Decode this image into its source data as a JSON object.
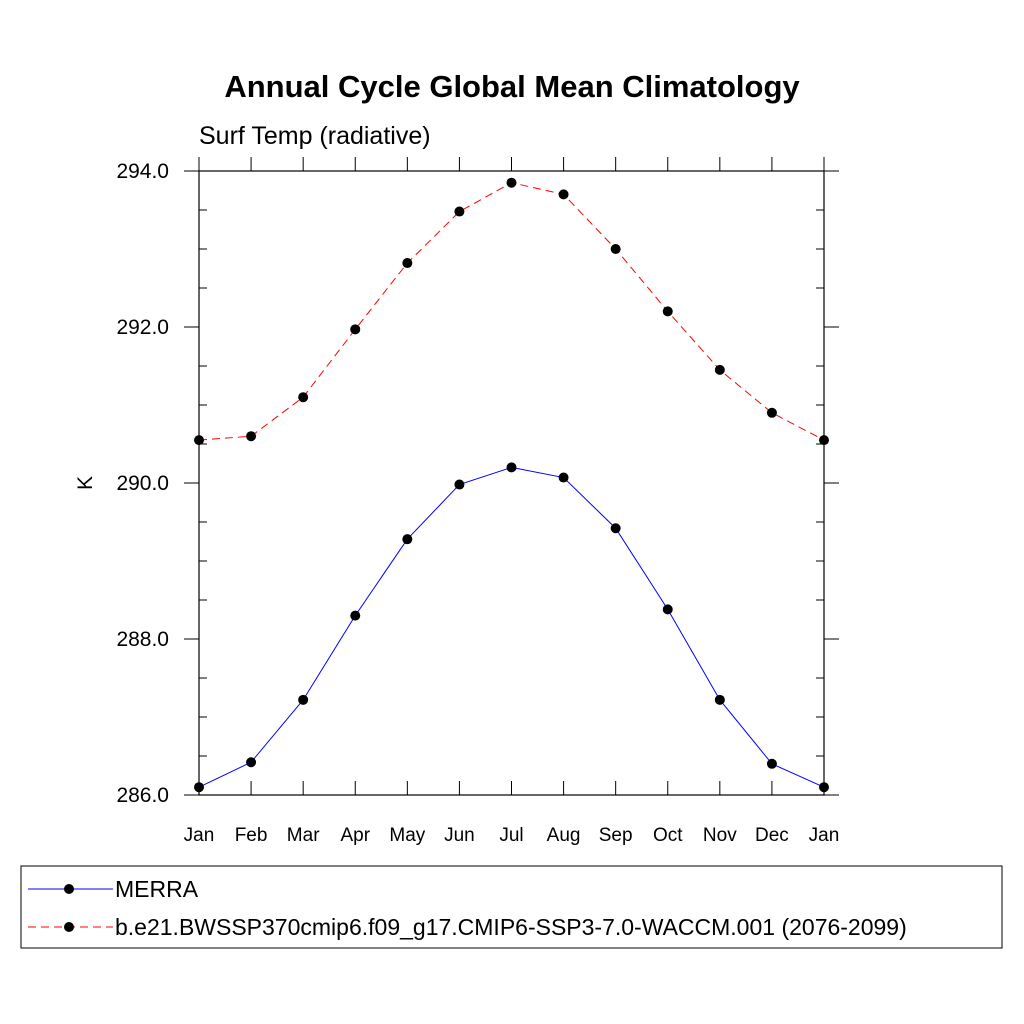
{
  "chart_data": {
    "type": "line",
    "title": "Annual Cycle Global Mean Climatology",
    "subtitle": "Surf Temp (radiative)",
    "xlabel": "",
    "ylabel": "K",
    "categories": [
      "Jan",
      "Feb",
      "Mar",
      "Apr",
      "May",
      "Jun",
      "Jul",
      "Aug",
      "Sep",
      "Oct",
      "Nov",
      "Dec",
      "Jan"
    ],
    "ylim": [
      286.0,
      294.0
    ],
    "yticks": [
      "286.0",
      "288.0",
      "290.0",
      "292.0",
      "294.0"
    ],
    "grid": false,
    "legend_position": "bottom",
    "series": [
      {
        "name": "MERRA",
        "color": "#0000ff",
        "line_style": "solid",
        "marker": "circle",
        "values": [
          286.1,
          286.42,
          287.22,
          288.3,
          289.28,
          289.98,
          290.2,
          290.07,
          289.42,
          288.38,
          287.22,
          286.4,
          286.1
        ]
      },
      {
        "name": "b.e21.BWSSP370cmip6.f09_g17.CMIP6-SSP3-7.0-WACCM.001 (2076-2099)",
        "color": "#ff0000",
        "line_style": "dashed",
        "marker": "circle",
        "values": [
          290.55,
          290.6,
          291.1,
          291.97,
          292.82,
          293.48,
          293.85,
          293.7,
          293.0,
          292.2,
          291.45,
          290.9,
          290.55
        ]
      }
    ]
  }
}
